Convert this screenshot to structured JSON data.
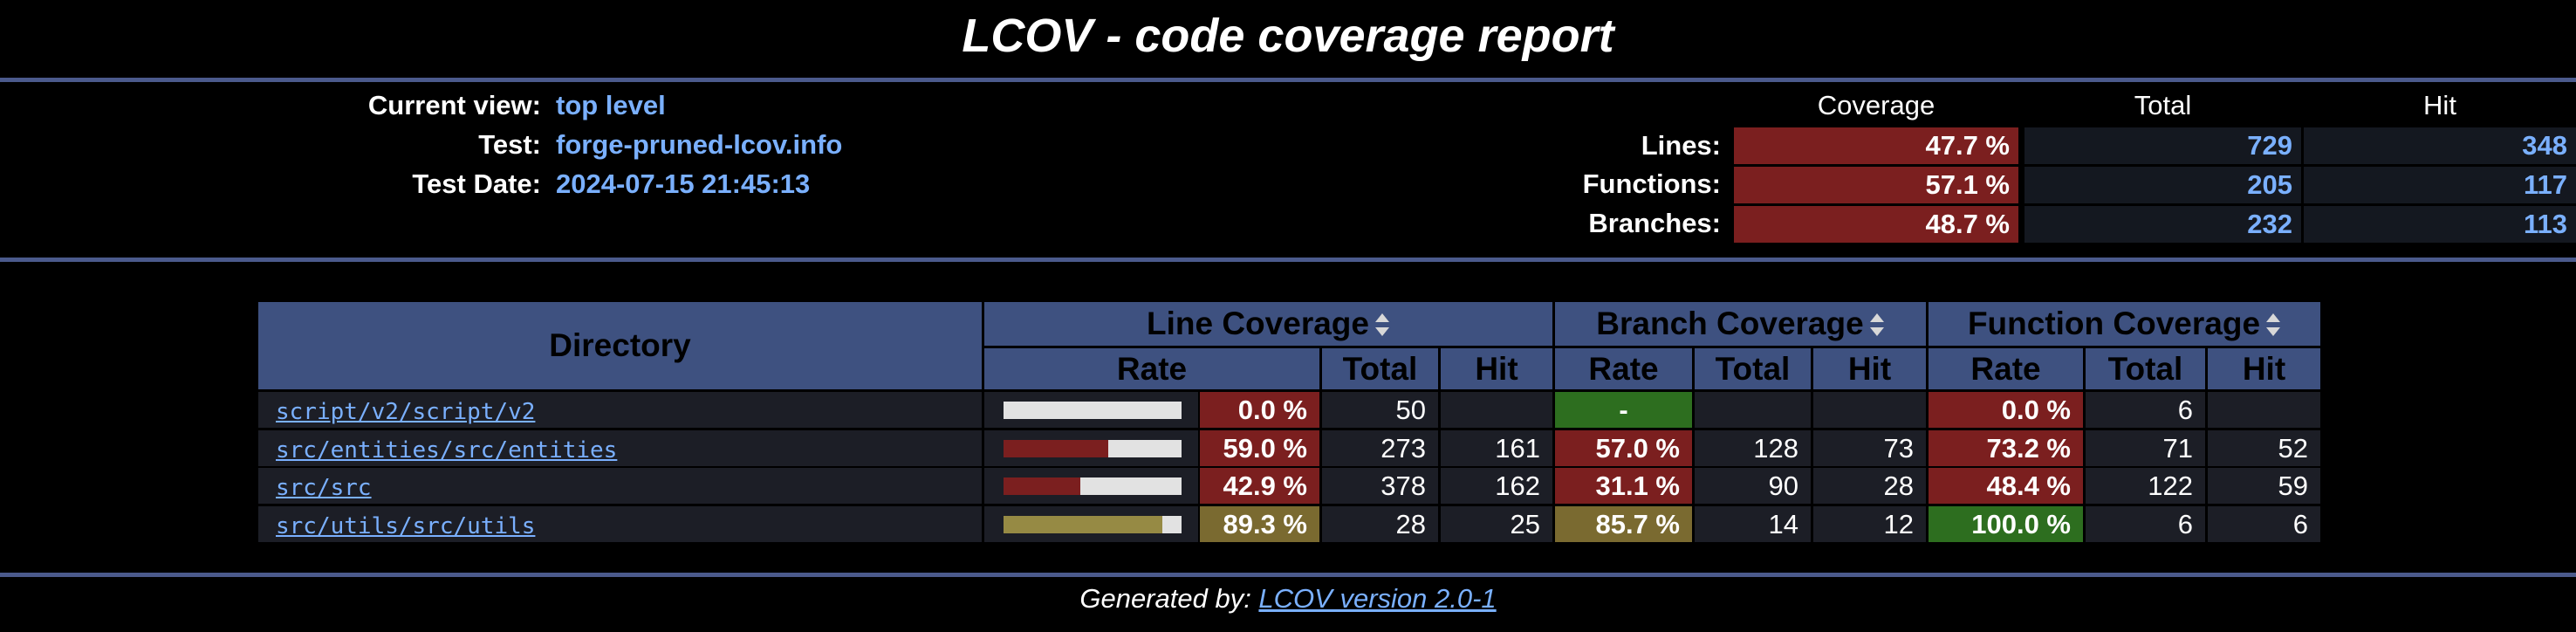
{
  "title": "LCOV - code coverage report",
  "header": {
    "current_view_label": "Current view:",
    "current_view_value": "top level",
    "test_label": "Test:",
    "test_value": "forge-pruned-lcov.info",
    "test_date_label": "Test Date:",
    "test_date_value": "2024-07-15 21:45:13"
  },
  "summary": {
    "coverage_head": "Coverage",
    "total_head": "Total",
    "hit_head": "Hit",
    "rows": [
      {
        "label": "Lines:",
        "coverage": "47.7 %",
        "total": "729",
        "hit": "348"
      },
      {
        "label": "Functions:",
        "coverage": "57.1 %",
        "total": "205",
        "hit": "117"
      },
      {
        "label": "Branches:",
        "coverage": "48.7 %",
        "total": "232",
        "hit": "113"
      }
    ]
  },
  "table": {
    "directory_head": "Directory",
    "line_coverage_head": "Line Coverage",
    "branch_coverage_head": "Branch Coverage",
    "function_coverage_head": "Function Coverage",
    "rate_head": "Rate",
    "total_head": "Total",
    "hit_head": "Hit",
    "rows": [
      {
        "directory": "script/v2/script/v2",
        "line_fraction": 0.0,
        "line_rate": "0.0 %",
        "line_total": "50",
        "line_hit": "",
        "branch_rate": "-",
        "branch_total": "",
        "branch_hit": "",
        "func_rate": "0.0 %",
        "func_total": "6",
        "func_hit": ""
      },
      {
        "directory": "src/entities/src/entities",
        "line_fraction": 0.59,
        "line_rate": "59.0 %",
        "line_total": "273",
        "line_hit": "161",
        "branch_rate": "57.0 %",
        "branch_total": "128",
        "branch_hit": "73",
        "func_rate": "73.2 %",
        "func_total": "71",
        "func_hit": "52"
      },
      {
        "directory": "src/src",
        "line_fraction": 0.429,
        "line_rate": "42.9 %",
        "line_total": "378",
        "line_hit": "162",
        "branch_rate": "31.1 %",
        "branch_total": "90",
        "branch_hit": "28",
        "func_rate": "48.4 %",
        "func_total": "122",
        "func_hit": "59"
      },
      {
        "directory": "src/utils/src/utils",
        "line_fraction": 0.893,
        "line_rate": "89.3 %",
        "line_total": "28",
        "line_hit": "25",
        "branch_rate": "85.7 %",
        "branch_total": "14",
        "branch_hit": "12",
        "func_rate": "100.0 %",
        "func_total": "6",
        "func_hit": "6"
      }
    ]
  },
  "colors": {
    "low": "#7b1f1f",
    "medium": "#7a6a30",
    "high": "#2d6e1f",
    "bar_low": "#7b1f1f",
    "bar_medium": "#968a44"
  },
  "footer": {
    "prefix": "Generated by: ",
    "link_text": "LCOV version 2.0-1"
  }
}
